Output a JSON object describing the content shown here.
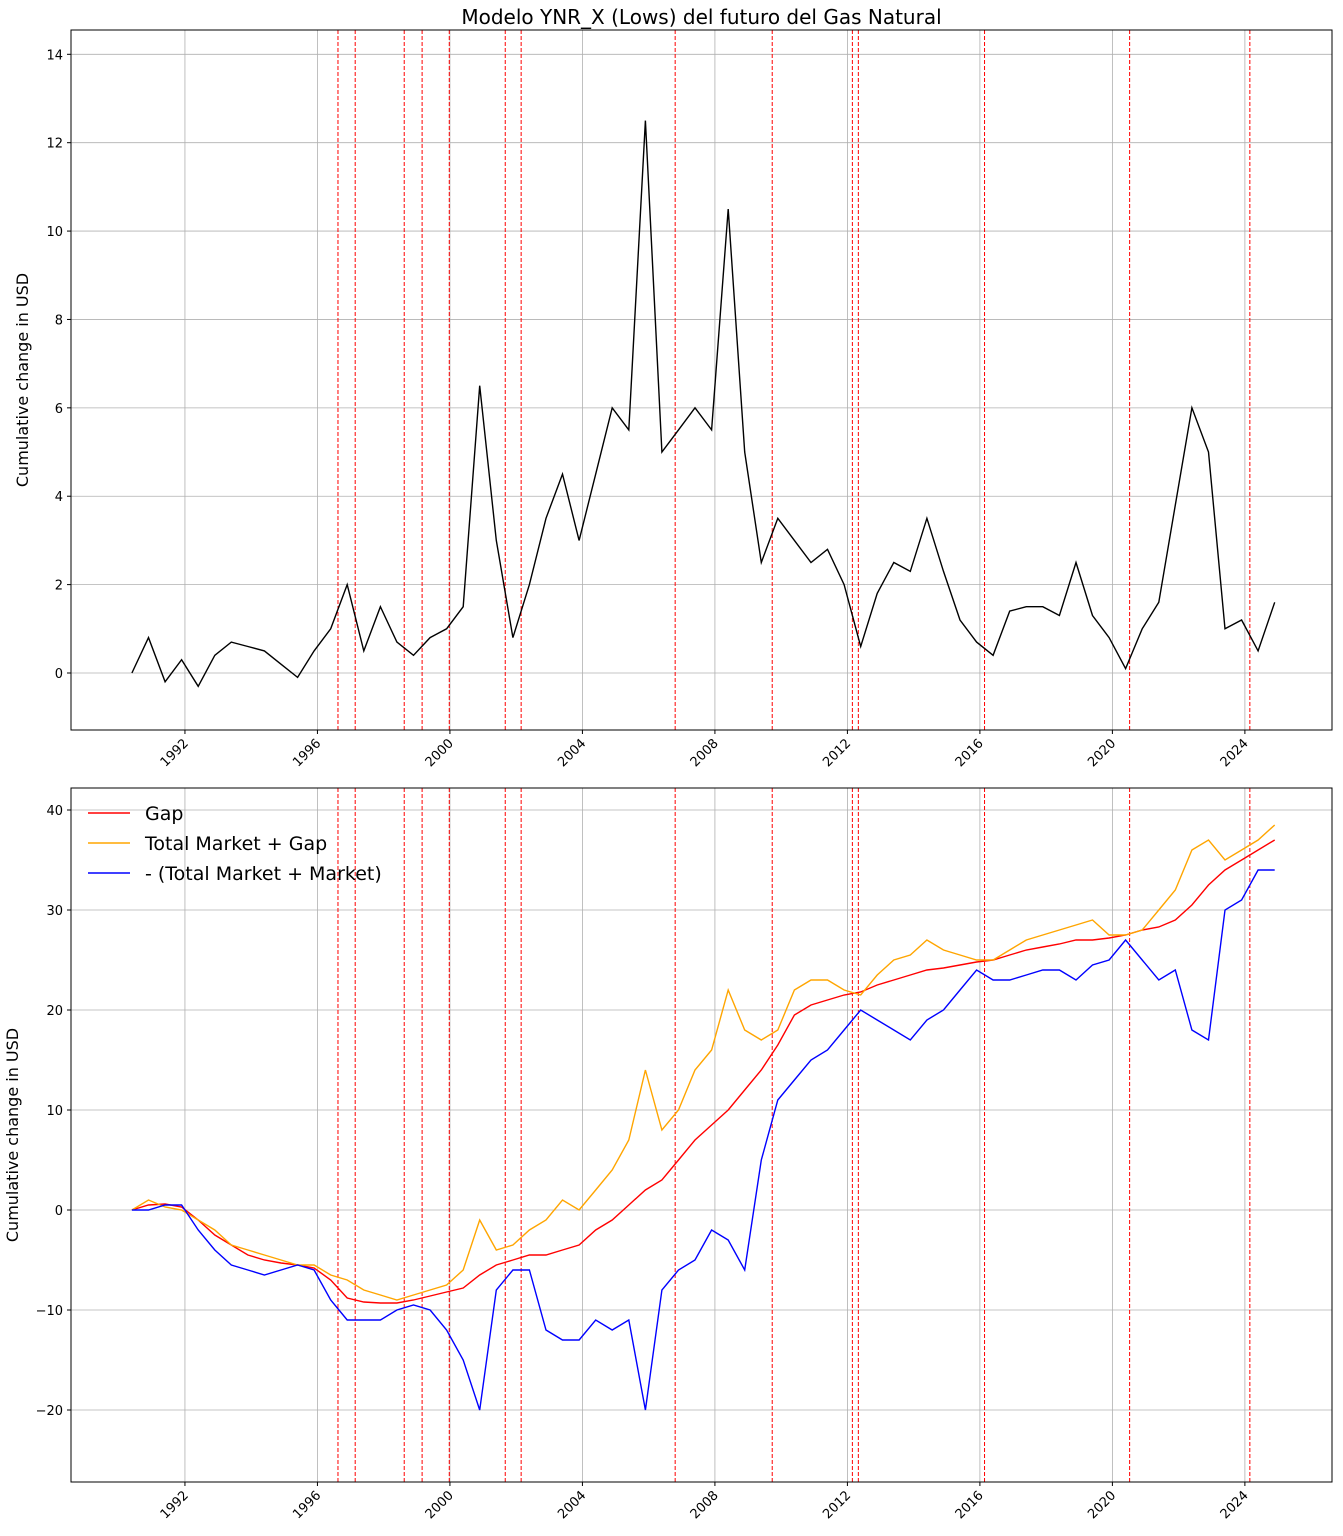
{
  "chart_data": [
    {
      "type": "line",
      "title": "Modelo YNR_X (Lows) del futuro del Gas Natural",
      "y_label": "Cumulative change in USD",
      "x": [
        1990.4,
        1990.9,
        1991.4,
        1991.9,
        1992.4,
        1992.9,
        1993.4,
        1993.9,
        1994.4,
        1994.9,
        1995.4,
        1995.9,
        1996.4,
        1996.9,
        1997.4,
        1997.9,
        1998.4,
        1998.9,
        1999.4,
        1999.9,
        2000.4,
        2000.9,
        2001.4,
        2001.9,
        2002.4,
        2002.9,
        2003.4,
        2003.9,
        2004.4,
        2004.9,
        2005.4,
        2005.9,
        2006.4,
        2006.9,
        2007.4,
        2007.9,
        2008.4,
        2008.9,
        2009.4,
        2009.9,
        2010.4,
        2010.9,
        2011.4,
        2011.9,
        2012.4,
        2012.9,
        2013.4,
        2013.9,
        2014.4,
        2014.9,
        2015.4,
        2015.9,
        2016.4,
        2016.9,
        2017.4,
        2017.9,
        2018.4,
        2018.9,
        2019.4,
        2019.9,
        2020.4,
        2020.9,
        2021.4,
        2021.9,
        2022.4,
        2022.9,
        2023.4,
        2023.9,
        2024.4,
        2024.9
      ],
      "series": [
        {
          "color": "#000000",
          "values": [
            0,
            0.8,
            -0.2,
            0.3,
            -0.3,
            0.4,
            0.7,
            0.6,
            0.5,
            0.2,
            -0.1,
            0.5,
            1.0,
            2.0,
            0.5,
            1.5,
            0.7,
            0.4,
            0.8,
            1.0,
            1.5,
            6.5,
            3.0,
            0.8,
            2.0,
            3.5,
            4.5,
            3.0,
            4.5,
            6.0,
            5.5,
            12.5,
            5.0,
            5.5,
            6.0,
            5.5,
            10.5,
            5.0,
            2.5,
            3.5,
            3.0,
            2.5,
            2.8,
            2.0,
            0.6,
            1.8,
            2.5,
            2.3,
            3.5,
            2.3,
            1.2,
            0.7,
            0.4,
            1.4,
            1.5,
            1.5,
            1.3,
            2.5,
            1.3,
            0.8,
            0.1,
            1.0,
            1.6,
            3.8,
            6.0,
            5.0,
            1.0,
            1.2,
            0.5,
            1.6
          ]
        }
      ],
      "xlim": [
        1988.56,
        2026.63
      ],
      "ylim": [
        -1.29,
        14.55
      ],
      "xticks": [
        1992,
        1996,
        2000,
        2004,
        2008,
        2012,
        2016,
        2020,
        2024
      ],
      "yticks": [
        0,
        2,
        4,
        6,
        8,
        10,
        12,
        14
      ],
      "vlines": [
        1996.62,
        1997.14,
        1998.62,
        1999.16,
        1999.98,
        2001.67,
        2002.15,
        2006.8,
        2009.73,
        2012.15,
        2012.33,
        2016.14,
        2020.52,
        2024.15
      ],
      "vline_color": "#ff0000",
      "grid": true
    },
    {
      "type": "line",
      "y_label": "Cumulative change in USD",
      "legend": "upper left",
      "x": [
        1990.4,
        1990.9,
        1991.4,
        1991.9,
        1992.4,
        1992.9,
        1993.4,
        1993.9,
        1994.4,
        1994.9,
        1995.4,
        1995.9,
        1996.4,
        1996.9,
        1997.4,
        1997.9,
        1998.4,
        1998.9,
        1999.4,
        1999.9,
        2000.4,
        2000.9,
        2001.4,
        2001.9,
        2002.4,
        2002.9,
        2003.4,
        2003.9,
        2004.4,
        2004.9,
        2005.4,
        2005.9,
        2006.4,
        2006.9,
        2007.4,
        2007.9,
        2008.4,
        2008.9,
        2009.4,
        2009.9,
        2010.4,
        2010.9,
        2011.4,
        2011.9,
        2012.4,
        2012.9,
        2013.4,
        2013.9,
        2014.4,
        2014.9,
        2015.4,
        2015.9,
        2016.4,
        2016.9,
        2017.4,
        2017.9,
        2018.4,
        2018.9,
        2019.4,
        2019.9,
        2020.4,
        2020.9,
        2021.4,
        2021.9,
        2022.4,
        2022.9,
        2023.4,
        2023.9,
        2024.4,
        2024.9
      ],
      "series": [
        {
          "name": "Gap",
          "color": "#ff0000",
          "values": [
            0,
            0.5,
            0.6,
            0.3,
            -1,
            -2.5,
            -3.5,
            -4.5,
            -5,
            -5.3,
            -5.5,
            -5.8,
            -7,
            -8.8,
            -9.2,
            -9.3,
            -9.3,
            -9,
            -8.6,
            -8.2,
            -7.8,
            -6.5,
            -5.5,
            -5,
            -4.5,
            -4.5,
            -4,
            -3.5,
            -2,
            -1,
            0.5,
            2,
            3,
            5,
            7,
            8.5,
            10,
            12,
            14,
            16.5,
            19.5,
            20.5,
            21,
            21.5,
            21.8,
            22.5,
            23,
            23.5,
            24,
            24.2,
            24.5,
            24.8,
            25,
            25.5,
            26,
            26.3,
            26.6,
            27,
            27,
            27.2,
            27.5,
            28,
            28.3,
            29,
            30.5,
            32.5,
            34,
            35,
            36,
            37
          ]
        },
        {
          "name": "Total Market + Gap",
          "color": "#ffa500",
          "values": [
            0,
            1,
            0.3,
            0,
            -1,
            -2,
            -3.5,
            -4,
            -4.5,
            -5,
            -5.5,
            -5.5,
            -6.5,
            -7,
            -8,
            -8.5,
            -9,
            -8.5,
            -8,
            -7.5,
            -6,
            -1,
            -4,
            -3.5,
            -2,
            -1,
            1,
            0,
            2,
            4,
            7,
            14,
            8,
            10,
            14,
            16,
            22,
            18,
            17,
            18,
            22,
            23,
            23,
            22,
            21.5,
            23.5,
            25,
            25.5,
            27,
            26,
            25.5,
            25,
            25,
            26,
            27,
            27.5,
            28,
            28.5,
            29,
            27.5,
            27.5,
            28,
            30,
            32,
            36,
            37,
            35,
            36,
            37,
            38.5
          ]
        },
        {
          "name": "- (Total Market + Market)",
          "color": "#0000ff",
          "values": [
            0,
            0,
            0.5,
            0.5,
            -2,
            -4,
            -5.5,
            -6,
            -6.5,
            -6,
            -5.5,
            -6,
            -9,
            -11,
            -11,
            -11,
            -10,
            -9.5,
            -10,
            -12,
            -15,
            -20,
            -8,
            -6,
            -6,
            -12,
            -13,
            -13,
            -11,
            -12,
            -11,
            -20,
            -8,
            -6,
            -5,
            -2,
            -3,
            -6,
            5,
            11,
            13,
            15,
            16,
            18,
            20,
            19,
            18,
            17,
            19,
            20,
            22,
            24,
            23,
            23,
            23.5,
            24,
            24,
            23,
            24.5,
            25,
            27,
            25,
            23,
            24,
            18,
            17,
            30,
            31,
            34,
            34
          ]
        }
      ],
      "xlim": [
        1988.56,
        2026.63
      ],
      "ylim": [
        -27.2,
        42.2
      ],
      "xticks": [
        1992,
        1996,
        2000,
        2004,
        2008,
        2012,
        2016,
        2020,
        2024
      ],
      "yticks": [
        {
          "value": -20,
          "label": "−20"
        },
        {
          "value": -10,
          "label": "−10"
        },
        0,
        10,
        20,
        30,
        40
      ],
      "vlines": [
        1996.62,
        1997.14,
        1998.62,
        1999.16,
        1999.98,
        2001.67,
        2002.15,
        2006.8,
        2009.73,
        2012.15,
        2012.33,
        2016.14,
        2020.52,
        2024.15
      ],
      "vline_color": "#ff0000",
      "grid": true
    }
  ]
}
